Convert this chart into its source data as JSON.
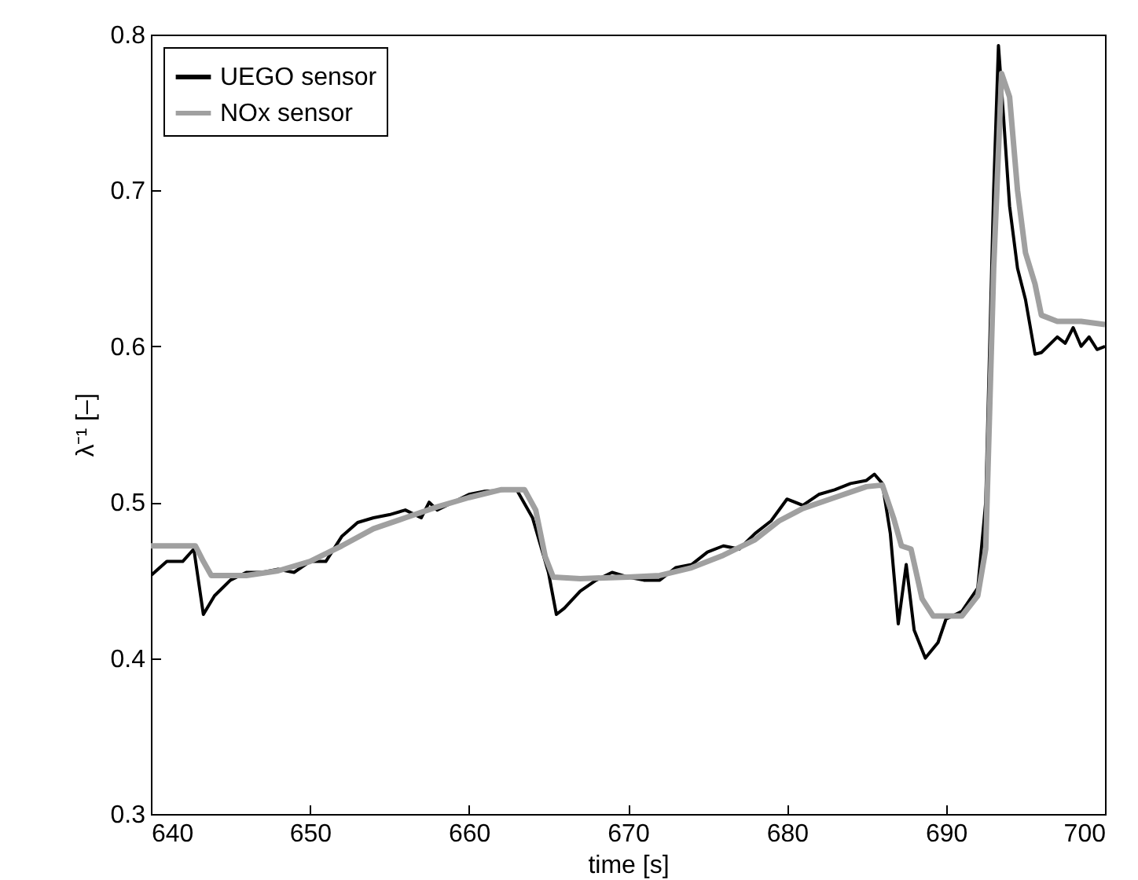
{
  "chart_data": {
    "type": "line",
    "xlabel": "time [s]",
    "ylabel": "λ⁻¹ [–]",
    "xlim": [
      640,
      700
    ],
    "xticks": [
      640,
      650,
      660,
      670,
      680,
      690,
      700
    ],
    "ylim": [
      0.3,
      0.8
    ],
    "yticks": [
      0.3,
      0.4,
      0.5,
      0.6,
      0.7,
      0.8
    ],
    "legend": "top left",
    "grid": false,
    "series": [
      {
        "name": "UEGO sensor",
        "color": "#000000",
        "x": [
          640,
          641,
          642,
          642.7,
          643.3,
          644,
          645,
          646,
          647,
          648,
          649,
          650,
          651,
          652,
          653,
          654,
          655,
          656,
          657,
          657.5,
          658,
          659,
          660,
          661,
          663,
          664,
          665,
          665.5,
          666,
          667,
          668,
          669,
          670,
          671,
          672,
          673,
          674,
          675,
          676,
          677,
          678,
          679,
          680,
          681,
          682,
          683,
          684,
          685,
          685.5,
          686,
          686.5,
          687,
          687.5,
          688,
          688.7,
          689.5,
          690,
          691,
          692,
          692.5,
          693,
          693.3,
          693.6,
          694,
          694.5,
          695,
          695.6,
          696,
          697,
          697.5,
          698,
          698.5,
          699,
          699.5,
          700
        ],
        "values": [
          0.453,
          0.462,
          0.462,
          0.47,
          0.428,
          0.44,
          0.45,
          0.455,
          0.455,
          0.457,
          0.455,
          0.462,
          0.462,
          0.478,
          0.487,
          0.49,
          0.492,
          0.495,
          0.49,
          0.5,
          0.495,
          0.5,
          0.505,
          0.507,
          0.508,
          0.49,
          0.455,
          0.428,
          0.432,
          0.443,
          0.45,
          0.455,
          0.452,
          0.45,
          0.45,
          0.458,
          0.46,
          0.468,
          0.472,
          0.47,
          0.48,
          0.488,
          0.502,
          0.498,
          0.505,
          0.508,
          0.512,
          0.514,
          0.518,
          0.512,
          0.48,
          0.422,
          0.46,
          0.418,
          0.4,
          0.41,
          0.425,
          0.43,
          0.445,
          0.5,
          0.7,
          0.793,
          0.75,
          0.69,
          0.65,
          0.63,
          0.595,
          0.596,
          0.606,
          0.602,
          0.612,
          0.6,
          0.606,
          0.598,
          0.6
        ]
      },
      {
        "name": "NOx sensor",
        "color": "#a0a0a0",
        "x": [
          640,
          642.8,
          643.3,
          643.8,
          646,
          648,
          650,
          652,
          654,
          656,
          658,
          660,
          662,
          663.5,
          664.2,
          664.8,
          665.3,
          667,
          670,
          672,
          674,
          676,
          678,
          679.5,
          681,
          683,
          685,
          686,
          686.7,
          687.2,
          687.8,
          688.5,
          689.2,
          691,
          692,
          692.5,
          693,
          693.5,
          694,
          694.5,
          695,
          695.6,
          696,
          697,
          698.5,
          700
        ],
        "values": [
          0.472,
          0.472,
          0.462,
          0.453,
          0.453,
          0.456,
          0.462,
          0.472,
          0.483,
          0.49,
          0.497,
          0.503,
          0.508,
          0.508,
          0.495,
          0.465,
          0.452,
          0.451,
          0.452,
          0.453,
          0.458,
          0.466,
          0.476,
          0.488,
          0.496,
          0.503,
          0.51,
          0.511,
          0.49,
          0.472,
          0.47,
          0.438,
          0.427,
          0.427,
          0.44,
          0.47,
          0.65,
          0.775,
          0.76,
          0.7,
          0.66,
          0.64,
          0.62,
          0.616,
          0.616,
          0.614
        ]
      }
    ]
  }
}
